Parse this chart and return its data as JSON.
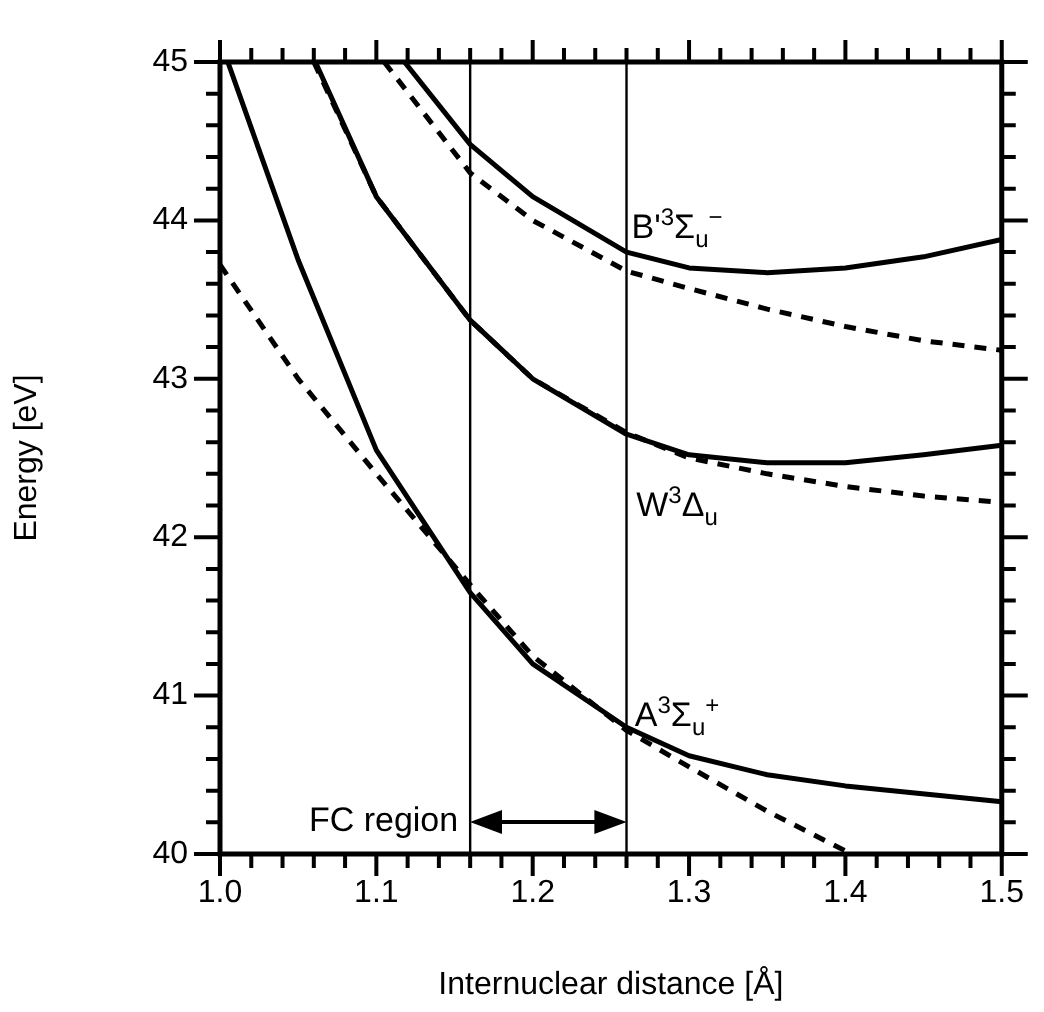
{
  "chart_data": {
    "type": "line",
    "xlabel": "Internuclear distance [Å]",
    "ylabel": "Energy [eV]",
    "xlim": [
      1.0,
      1.5
    ],
    "ylim": [
      40,
      45
    ],
    "xticks": [
      {
        "value": 1.0,
        "label": "1.0"
      },
      {
        "value": 1.02,
        "label": null
      },
      {
        "value": 1.04,
        "label": null
      },
      {
        "value": 1.06,
        "label": null
      },
      {
        "value": 1.08,
        "label": null
      },
      {
        "value": 1.1,
        "label": "1.1"
      },
      {
        "value": 1.12,
        "label": null
      },
      {
        "value": 1.14,
        "label": null
      },
      {
        "value": 1.16,
        "label": null
      },
      {
        "value": 1.18,
        "label": null
      },
      {
        "value": 1.2,
        "label": "1.2"
      },
      {
        "value": 1.22,
        "label": null
      },
      {
        "value": 1.24,
        "label": null
      },
      {
        "value": 1.26,
        "label": null
      },
      {
        "value": 1.28,
        "label": null
      },
      {
        "value": 1.3,
        "label": "1.3"
      },
      {
        "value": 1.32,
        "label": null
      },
      {
        "value": 1.34,
        "label": null
      },
      {
        "value": 1.36,
        "label": null
      },
      {
        "value": 1.38,
        "label": null
      },
      {
        "value": 1.4,
        "label": "1.4"
      },
      {
        "value": 1.42,
        "label": null
      },
      {
        "value": 1.44,
        "label": null
      },
      {
        "value": 1.46,
        "label": null
      },
      {
        "value": 1.48,
        "label": null
      },
      {
        "value": 1.5,
        "label": "1.5"
      }
    ],
    "yticks": [
      40,
      {
        "value": 40.2,
        "label": null
      },
      {
        "value": 40.4,
        "label": null
      },
      {
        "value": 40.6,
        "label": null
      },
      {
        "value": 40.8,
        "label": null
      },
      41,
      {
        "value": 41.2,
        "label": null
      },
      {
        "value": 41.4,
        "label": null
      },
      {
        "value": 41.6,
        "label": null
      },
      {
        "value": 41.8,
        "label": null
      },
      42,
      {
        "value": 42.2,
        "label": null
      },
      {
        "value": 42.4,
        "label": null
      },
      {
        "value": 42.6,
        "label": null
      },
      {
        "value": 42.8,
        "label": null
      },
      43,
      {
        "value": 43.2,
        "label": null
      },
      {
        "value": 43.4,
        "label": null
      },
      {
        "value": 43.6,
        "label": null
      },
      {
        "value": 43.8,
        "label": null
      },
      44,
      {
        "value": 44.2,
        "label": null
      },
      {
        "value": 44.4,
        "label": null
      },
      {
        "value": 44.6,
        "label": null
      },
      {
        "value": 44.8,
        "label": null
      },
      45
    ],
    "grid": false,
    "legend": false,
    "marker": "none",
    "series": [
      {
        "name": "A$^{3}$Σ$_{u}$$^{+}$",
        "color": "#000000",
        "line_style": "solid",
        "x": [
          1.005,
          1.05,
          1.1,
          1.16,
          1.2,
          1.26,
          1.3,
          1.35,
          1.4,
          1.5
        ],
        "values": [
          45,
          43.75,
          42.55,
          41.65,
          41.2,
          40.8,
          40.62,
          40.5,
          40.43,
          40.33
        ]
      },
      {
        "color": "#000000",
        "line_style": "dashed",
        "x": [
          1.0,
          1.05,
          1.1,
          1.16,
          1.2,
          1.26,
          1.3,
          1.35,
          1.4
        ],
        "values": [
          43.72,
          43.0,
          42.4,
          41.7,
          41.25,
          40.78,
          40.55,
          40.27,
          40.02
        ]
      },
      {
        "name": "W$^{3}$Δ$_{u}$",
        "color": "#000000",
        "line_style": "solid",
        "x": [
          1.061,
          1.1,
          1.16,
          1.2,
          1.26,
          1.3,
          1.35,
          1.4,
          1.45,
          1.5
        ],
        "values": [
          45,
          44.15,
          43.37,
          43.0,
          42.65,
          42.52,
          42.47,
          42.47,
          42.52,
          42.58
        ]
      },
      {
        "color": "#000000",
        "line_style": "dashed",
        "x": [
          1.06,
          1.1,
          1.16,
          1.2,
          1.26,
          1.3,
          1.35,
          1.4,
          1.45,
          1.5
        ],
        "values": [
          45,
          44.15,
          43.37,
          43.0,
          42.66,
          42.5,
          42.4,
          42.32,
          42.26,
          42.22
        ]
      },
      {
        "name": "B'$^{3}$Σ$_{u}$$^{−}$",
        "color": "#000000",
        "line_style": "solid",
        "x": [
          1.118,
          1.16,
          1.2,
          1.26,
          1.3,
          1.35,
          1.4,
          1.45,
          1.5
        ],
        "values": [
          45,
          44.48,
          44.15,
          43.8,
          43.7,
          43.67,
          43.7,
          43.77,
          43.88
        ]
      },
      {
        "color": "#000000",
        "line_style": "dashed",
        "x": [
          1.105,
          1.16,
          1.2,
          1.26,
          1.3,
          1.35,
          1.4,
          1.45,
          1.5
        ],
        "values": [
          45,
          44.3,
          44.0,
          43.68,
          43.57,
          43.44,
          43.33,
          43.24,
          43.18
        ]
      }
    ],
    "ref_lines": [
      {
        "axis": "x",
        "value": 1.16,
        "color": "#000000"
      },
      {
        "axis": "x",
        "value": 1.26,
        "color": "#000000"
      }
    ],
    "annotations": [
      "FC region"
    ]
  }
}
